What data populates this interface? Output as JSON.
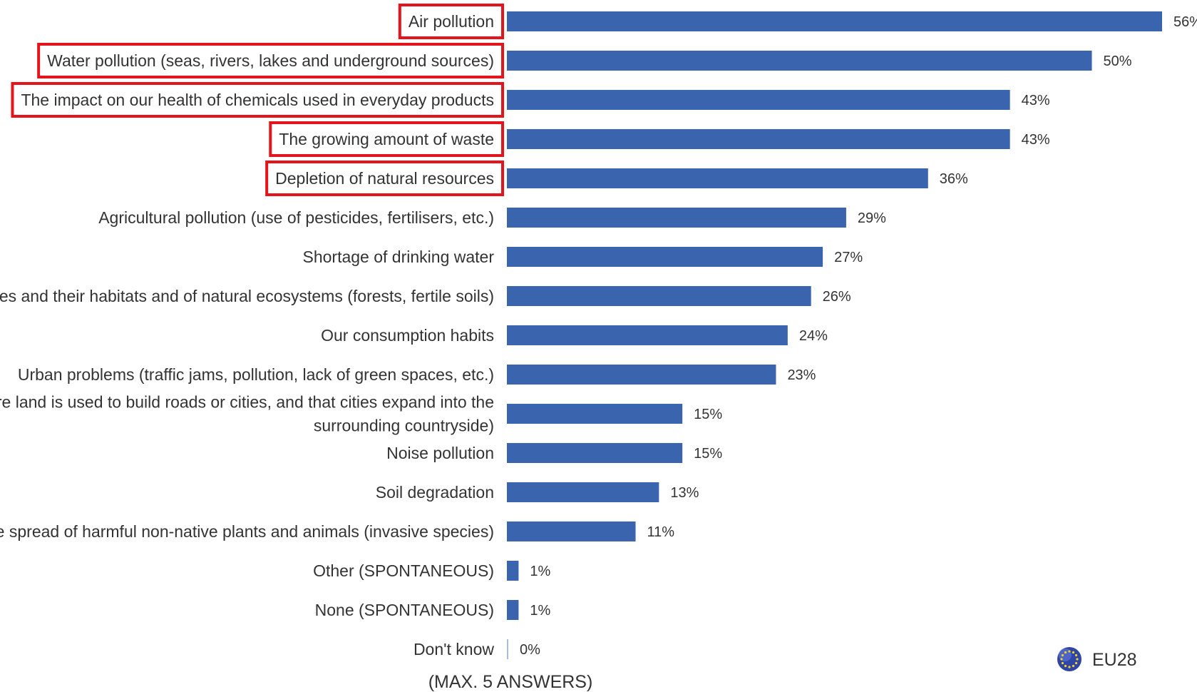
{
  "chart_data": {
    "type": "bar",
    "orientation": "horizontal",
    "categories": [
      "Air pollution",
      "Water pollution (seas, rivers, lakes and underground sources)",
      "The impact on our health of chemicals used in everyday products",
      "The growing amount of waste",
      "Depletion of natural resources",
      "Agricultural pollution (use of pesticides, fertilisers, etc.)",
      "Shortage of drinking water",
      "species and their habitats and of natural ecosystems (forests, fertile soils)",
      "Our consumption habits",
      "Urban problems (traffic jams, pollution, lack of green spaces, etc.)",
      "t more land is used to build roads or cities, and that cities expand into the surrounding countryside)",
      "Noise pollution",
      "Soil degradation",
      "The spread of harmful non-native plants and animals (invasive species)",
      "Other (SPONTANEOUS)",
      "None (SPONTANEOUS)",
      "Don't know"
    ],
    "category_lines": [
      [
        "Air pollution"
      ],
      [
        "Water pollution (seas, rivers, lakes and underground sources)"
      ],
      [
        "The impact on our health of chemicals used in everyday products"
      ],
      [
        "The growing amount of waste"
      ],
      [
        "Depletion of natural resources"
      ],
      [
        "Agricultural pollution (use of pesticides, fertilisers, etc.)"
      ],
      [
        "Shortage of drinking water"
      ],
      [
        "species and their habitats and of natural ecosystems (forests, fertile soils)"
      ],
      [
        "Our consumption habits"
      ],
      [
        "Urban problems (traffic jams, pollution, lack of green spaces, etc.)"
      ],
      [
        "t more land is used to build roads or cities, and that cities expand into the",
        "surrounding countryside)"
      ],
      [
        "Noise pollution"
      ],
      [
        "Soil degradation"
      ],
      [
        "The spread of harmful non-native plants and animals (invasive species)"
      ],
      [
        "Other (SPONTANEOUS)"
      ],
      [
        "None (SPONTANEOUS)"
      ],
      [
        "Don't know"
      ]
    ],
    "values": [
      56,
      50,
      43,
      43,
      36,
      29,
      27,
      26,
      24,
      23,
      15,
      15,
      13,
      11,
      1,
      1,
      0
    ],
    "value_labels": [
      "56%",
      "50%",
      "43%",
      "43%",
      "36%",
      "29%",
      "27%",
      "26%",
      "24%",
      "23%",
      "15%",
      "15%",
      "13%",
      "11%",
      "1%",
      "1%",
      "0%"
    ],
    "highlighted": [
      true,
      true,
      true,
      true,
      true,
      false,
      false,
      false,
      false,
      false,
      false,
      false,
      false,
      false,
      false,
      false,
      false
    ],
    "xlim": [
      0,
      56
    ],
    "grid": false,
    "legend": {
      "label": "EU28",
      "position": "bottom-right"
    },
    "note": "(MAX. 5 ANSWERS)"
  },
  "colors": {
    "bar": "#3a64ad",
    "zero_bar": "#a9bde0",
    "highlight": "#e3141b",
    "text": "#333333",
    "legend_icon": "#2f45a8"
  },
  "icons": {
    "legend": "eu-flag-icon"
  }
}
